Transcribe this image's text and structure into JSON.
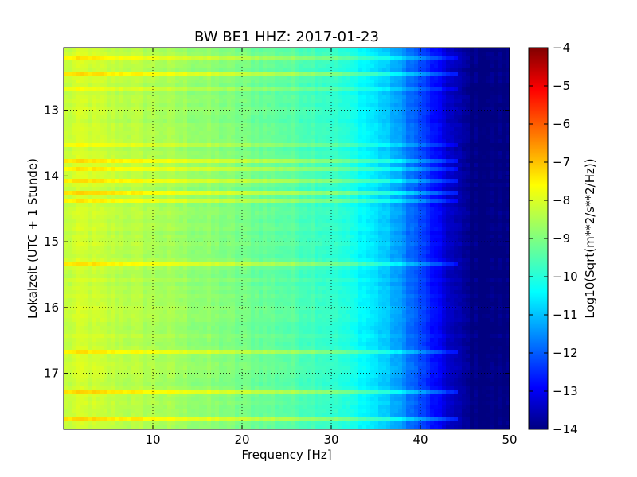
{
  "chart_data": {
    "type": "heatmap",
    "title": "BW BE1 HHZ: 2017-01-23",
    "xlabel": "Frequency [Hz]",
    "ylabel": "Lokalzeit (UTC + 1 Stunde)",
    "colorbar_label": "Log10(Sqrt(m**2/s**2/Hz))",
    "xlim": [
      0,
      50
    ],
    "ylim": [
      17.85,
      12.05
    ],
    "y_inverted": true,
    "grid": true,
    "x_ticks": [
      10,
      20,
      30,
      40,
      50
    ],
    "x_tick_labels": [
      "10",
      "20",
      "30",
      "40",
      "50"
    ],
    "y_ticks": [
      13,
      14,
      15,
      16,
      17
    ],
    "y_tick_labels": [
      "13",
      "14",
      "15",
      "16",
      "17"
    ],
    "colorbar_range": [
      -14,
      -4
    ],
    "colorbar_ticks": [
      -4,
      -5,
      -6,
      -7,
      -8,
      -9,
      -10,
      -11,
      -12,
      -13,
      -14
    ],
    "colorbar_tick_labels": [
      "−4",
      "−5",
      "−6",
      "−7",
      "−8",
      "−9",
      "−10",
      "−11",
      "−12",
      "−13",
      "−14"
    ],
    "colormap": "jet",
    "colormap_stops": [
      "#000080",
      "#0000ff",
      "#00ffff",
      "#ffff00",
      "#ff0000",
      "#800000"
    ],
    "spectrum_profile": {
      "frequency_hz": [
        0,
        2,
        5,
        10,
        15,
        20,
        25,
        30,
        33,
        36,
        38,
        40,
        42,
        44,
        46,
        50
      ],
      "log10_amplitude": [
        -8.3,
        -8.1,
        -8.3,
        -8.5,
        -8.8,
        -9.1,
        -9.4,
        -9.8,
        -10.3,
        -10.9,
        -11.5,
        -12.2,
        -13.0,
        -13.6,
        -14.0,
        -14.0
      ]
    },
    "bright_bands_hours": [
      12.2,
      12.45,
      12.7,
      13.55,
      13.8,
      13.92,
      14.05,
      14.28,
      14.35,
      15.35,
      16.65,
      17.3,
      17.7
    ],
    "band_brightness_log10": [
      0.6,
      0.8,
      0.5,
      0.6,
      0.9,
      0.8,
      0.9,
      0.9,
      0.7,
      0.8,
      0.8,
      0.9,
      0.9
    ]
  }
}
